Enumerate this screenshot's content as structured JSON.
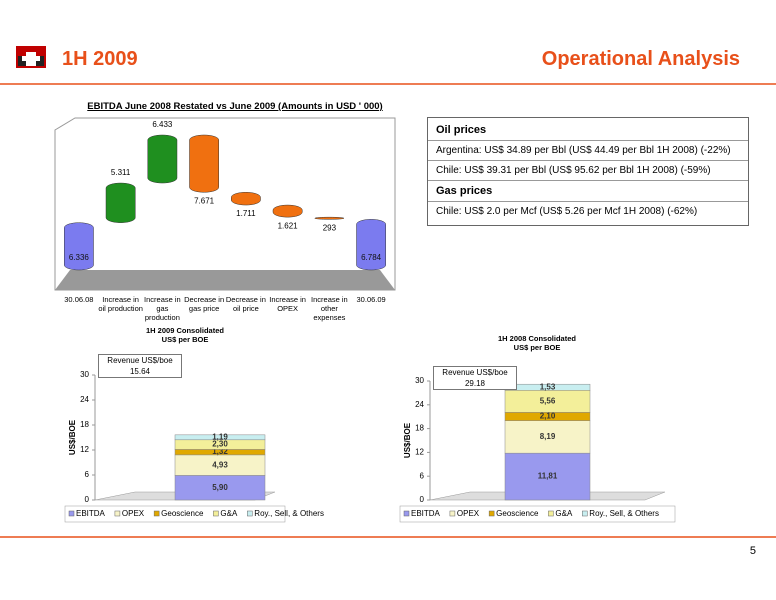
{
  "header": {
    "title": "1H 2009",
    "section": "Operational Analysis",
    "page_number": "5"
  },
  "info_box": [
    {
      "heading": "Oil prices",
      "lines": [
        "Argentina: US$ 34.89 per Bbl (US$ 44.49 per Bbl 1H 2008) (-22%)",
        "Chile: US$ 39.31 per Bbl (US$ 95.62 per Bbl 1H 2008) (-59%)"
      ]
    },
    {
      "heading": "Gas prices",
      "lines": [
        "Chile: US$ 2.0 per Mcf (US$ 5.26 per Mcf 1H 2008) (-62%)"
      ]
    }
  ],
  "chart_data": [
    {
      "type": "waterfall",
      "title": "EBITDA June 2008 Restated vs June 2009 (Amounts in USD ' 000)",
      "categories": [
        "30.06.08",
        "Increase in oil production",
        "Increase in gas production",
        "Decrease in gas price",
        "Decrease in oil price",
        "Increase in OPEX",
        "Increase in other expenses",
        "30.06.09"
      ],
      "values": [
        6336,
        5311,
        6433,
        7671,
        1711,
        1621,
        293,
        6784
      ],
      "value_labels": [
        "6.336",
        "5.311",
        "6.433",
        "7.671",
        "1.711",
        "1.621",
        "293",
        "6.784"
      ],
      "measure": [
        "absolute",
        "increase",
        "increase",
        "decrease",
        "decrease",
        "decrease",
        "decrease",
        "absolute"
      ],
      "colors": [
        "#7b7bef",
        "#1f8f1f",
        "#1f8f1f",
        "#f07010",
        "#f07010",
        "#f07010",
        "#f07010",
        "#7b7bef"
      ]
    },
    {
      "type": "stacked_bar",
      "title": "1H 2009 Consolidated US$ per BOE",
      "ylabel": "US$/BOE",
      "annotation": "Revenue US$/boe 15.64",
      "categories": [
        null
      ],
      "ylim": [
        0,
        30
      ],
      "yticks": [
        0,
        6,
        12,
        18,
        24,
        30
      ],
      "series": [
        {
          "name": "EBITDA",
          "color": "#9999ee",
          "values": [
            5.9
          ],
          "value_labels": [
            "5,90"
          ]
        },
        {
          "name": "OPEX",
          "color": "#f7f3c8",
          "values": [
            4.93
          ],
          "value_labels": [
            "4,93"
          ]
        },
        {
          "name": "Geoscience",
          "color": "#e0a800",
          "values": [
            1.32
          ],
          "value_labels": [
            "1,32"
          ]
        },
        {
          "name": "G&A",
          "color": "#f3ef9a",
          "values": [
            2.3
          ],
          "value_labels": [
            "2,30"
          ]
        },
        {
          "name": "Roy., Sell, & Others",
          "color": "#c8eef0",
          "values": [
            1.19
          ],
          "value_labels": [
            "1,19"
          ]
        }
      ]
    },
    {
      "type": "stacked_bar",
      "title": "1H 2008 Consolidated US$ per BOE",
      "ylabel": "US$/BOE",
      "annotation": "Revenue US$/boe 29.18",
      "categories": [
        null
      ],
      "ylim": [
        0,
        30
      ],
      "yticks": [
        0,
        6,
        12,
        18,
        24,
        30
      ],
      "series": [
        {
          "name": "EBITDA",
          "color": "#9999ee",
          "values": [
            11.81
          ],
          "value_labels": [
            "11,81"
          ]
        },
        {
          "name": "OPEX",
          "color": "#f7f3c8",
          "values": [
            8.19
          ],
          "value_labels": [
            "8,19"
          ]
        },
        {
          "name": "Geoscience",
          "color": "#e0a800",
          "values": [
            2.1
          ],
          "value_labels": [
            "2,10"
          ]
        },
        {
          "name": "G&A",
          "color": "#f3ef9a",
          "values": [
            5.56
          ],
          "value_labels": [
            "5,56"
          ]
        },
        {
          "name": "Roy., Sell, & Others",
          "color": "#c8eef0",
          "values": [
            1.53
          ],
          "value_labels": [
            "1,53"
          ]
        }
      ]
    }
  ]
}
